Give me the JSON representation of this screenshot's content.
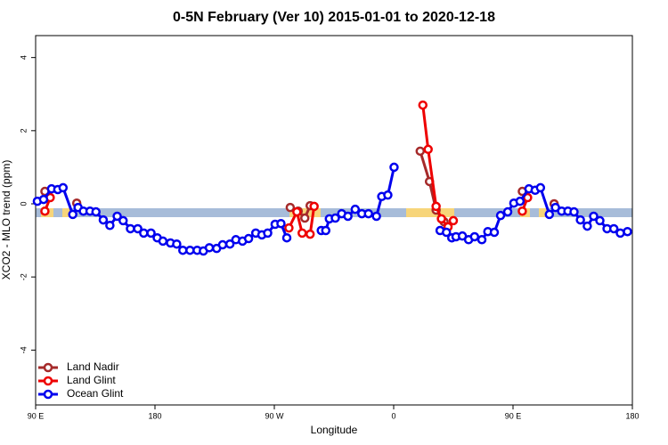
{
  "chart_data": {
    "type": "line",
    "title": "0-5N February (Ver 10)   2015-01-01 to 2020-12-18",
    "x_label": "Longitude",
    "y_label": "XCO2 - MLO trend (ppm)",
    "xlim": [
      90,
      540
    ],
    "ylim": [
      -5.5,
      4.6
    ],
    "xticks": [
      {
        "value": 90,
        "label": "90 E"
      },
      180,
      {
        "value": 270,
        "label": "90 W"
      },
      {
        "value": 360,
        "label": "0"
      },
      {
        "value": 450,
        "label": "90 E"
      },
      {
        "value": 540,
        "label": "180"
      }
    ],
    "yticks": [
      -4,
      -2,
      0,
      2,
      4
    ],
    "legend": "bottomleft",
    "series": [
      {
        "name": "Land Nadir",
        "color": "#a52a2a",
        "x": [
          97,
          null,
          121,
          null,
          282,
          288,
          293,
          297,
          null,
          380,
          387,
          392,
          398,
          null,
          457,
          null,
          481
        ],
        "values": [
          0.34,
          null,
          0.02,
          null,
          -0.1,
          -0.2,
          -0.39,
          -0.05,
          null,
          1.44,
          0.61,
          -0.17,
          -0.49,
          null,
          0.34,
          null,
          0.0
        ]
      },
      {
        "name": "Land Glint",
        "color": "#ee0000",
        "x": [
          97,
          101,
          null,
          281,
          287,
          291,
          297,
          300,
          null,
          382,
          386,
          392,
          396,
          401,
          405,
          null,
          457,
          461
        ],
        "values": [
          -0.2,
          0.17,
          null,
          -0.66,
          -0.22,
          -0.8,
          -0.83,
          -0.07,
          null,
          2.7,
          1.49,
          -0.07,
          -0.41,
          -0.63,
          -0.46,
          null,
          -0.2,
          0.17
        ]
      },
      {
        "name": "Ocean Glint",
        "color": "#0000ee",
        "x": [
          91.3,
          96,
          102,
          106.7,
          110.7,
          118,
          122,
          126,
          131,
          135.5,
          141,
          146,
          151.5,
          156,
          161.5,
          167,
          171.5,
          177,
          181.7,
          186,
          191.7,
          196.4,
          201,
          206.4,
          211.8,
          216.5,
          221,
          226.5,
          231,
          236.5,
          241,
          246,
          250.6,
          256,
          260.6,
          265,
          270.6,
          275,
          279.4,
          null,
          305.4,
          308.8,
          311.5,
          316,
          320.8,
          325.5,
          331,
          336,
          341,
          347,
          351,
          355.6,
          360.3,
          null,
          395,
          399.8,
          403.8,
          407,
          411.8,
          416.5,
          421,
          426.5,
          431,
          435.9,
          440.6,
          446,
          450.6,
          455.3,
          462,
          466.7,
          470.7,
          477.4,
          482,
          486.7,
          491.4,
          496,
          500.8,
          506,
          510.8,
          515.5,
          520.9,
          526,
          530.9,
          536.3
        ],
        "values": [
          0.07,
          0.12,
          0.41,
          0.39,
          0.44,
          -0.29,
          -0.1,
          -0.2,
          -0.2,
          -0.22,
          -0.44,
          -0.59,
          -0.34,
          -0.46,
          -0.68,
          -0.68,
          -0.8,
          -0.8,
          -0.93,
          -1.02,
          -1.07,
          -1.1,
          -1.27,
          -1.27,
          -1.27,
          -1.29,
          -1.2,
          -1.22,
          -1.12,
          -1.1,
          -0.98,
          -1.02,
          -0.95,
          -0.8,
          -0.85,
          -0.8,
          -0.56,
          -0.54,
          -0.93,
          null,
          -0.73,
          -0.73,
          -0.41,
          -0.39,
          -0.27,
          -0.34,
          -0.15,
          -0.27,
          -0.27,
          -0.34,
          0.2,
          0.24,
          1.0,
          null,
          -0.73,
          -0.78,
          -0.93,
          -0.9,
          -0.88,
          -0.98,
          -0.9,
          -0.98,
          -0.76,
          -0.78,
          -0.32,
          -0.22,
          0.02,
          0.07,
          0.41,
          0.37,
          0.44,
          -0.29,
          -0.1,
          -0.2,
          -0.2,
          -0.22,
          -0.44,
          -0.61,
          -0.34,
          -0.46,
          -0.68,
          -0.68,
          -0.8,
          -0.76
        ]
      }
    ]
  }
}
